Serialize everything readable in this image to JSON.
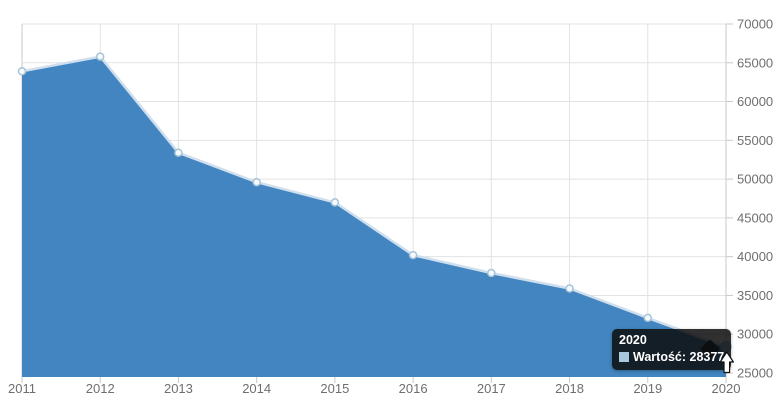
{
  "chart_data": {
    "type": "area",
    "title": "",
    "xlabel": "",
    "ylabel": "",
    "categories": [
      "2011",
      "2012",
      "2013",
      "2014",
      "2015",
      "2016",
      "2017",
      "2018",
      "2019",
      "2020"
    ],
    "series": [
      {
        "name": "Wartość",
        "values": [
          63900,
          65800,
          53400,
          49600,
          47000,
          40200,
          37900,
          35900,
          32100,
          28377
        ]
      }
    ],
    "ylim": [
      25000,
      70000
    ],
    "ytick_step": 5000,
    "ytick_labels": [
      "25000",
      "30000",
      "35000",
      "40000",
      "45000",
      "50000",
      "55000",
      "60000",
      "65000",
      "70000"
    ],
    "xtick_labels": [
      "2011",
      "2012",
      "2013",
      "2014",
      "2015",
      "2016",
      "2017",
      "2018",
      "2019",
      "2020"
    ],
    "grid": true,
    "legend_position": "none",
    "y_axis_side": "right",
    "hovered_point": {
      "category": "2020",
      "series": "Wartość",
      "value": 28377
    }
  },
  "tooltip": {
    "title": "2020",
    "row_text": "Wartość: 28377",
    "swatch_color": "#a9c8dd"
  },
  "colors": {
    "area_fill": "#4285c0",
    "line": "#cfdfed",
    "marker_fill": "#f6fafc",
    "marker_stroke": "#a7c4d8",
    "marker_active_fill": "#a9cbe2",
    "marker_active_stroke": "#93bad6",
    "grid": "#e3e3e3",
    "axis": "#c9c9c9",
    "tick_text": "#6f6f6f",
    "tooltip_bg": "#0c0c0c",
    "background": "#ffffff"
  }
}
